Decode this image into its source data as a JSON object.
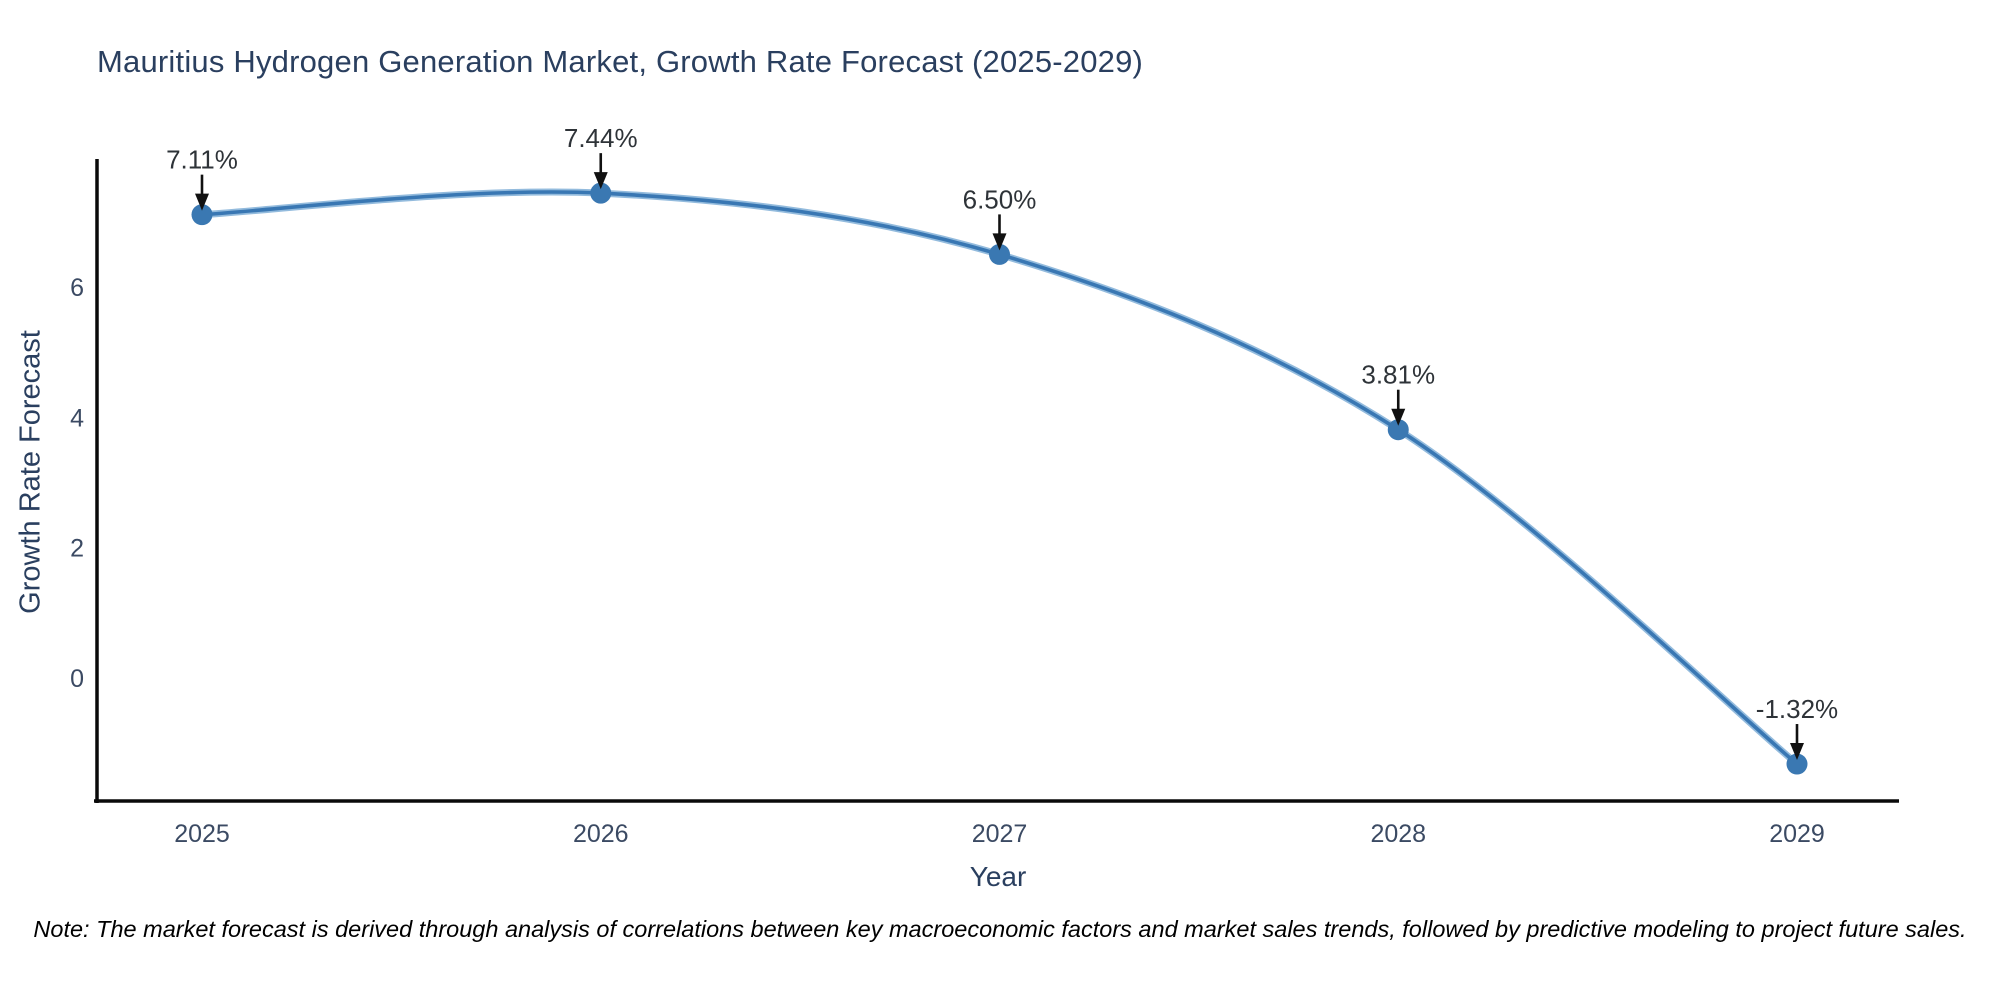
{
  "title": "Mauritius Hydrogen Generation Market, Growth Rate Forecast (2025-2029)",
  "note": "Note: The market forecast is derived through analysis of correlations between key macroeconomic factors and market sales trends, followed by predictive modeling to project future sales.",
  "chart_data": {
    "type": "line",
    "title": "Mauritius Hydrogen Generation Market, Growth Rate Forecast (2025-2029)",
    "xlabel": "Year",
    "ylabel": "Growth Rate Forecast",
    "x": [
      2025,
      2026,
      2027,
      2028,
      2029
    ],
    "values": [
      7.11,
      7.44,
      6.5,
      3.81,
      -1.32
    ],
    "point_labels": [
      "7.11%",
      "7.44%",
      "6.50%",
      "3.81%",
      "-1.32%"
    ],
    "x_ticks": [
      "2025",
      "2026",
      "2027",
      "2028",
      "2029"
    ],
    "y_ticks": [
      0,
      2,
      4,
      6
    ],
    "ylim": [
      -1.9,
      7.96
    ],
    "grid": false,
    "legend": false,
    "line_shape": "spline",
    "colors": {
      "line": "#3977b3",
      "line_halo": "#93bbdd",
      "marker": "#3a78b2",
      "axis": "#0a0a0a",
      "text": "#2a3f5f",
      "tick_text": "#3b4a63",
      "annotation_text": "#2e3338",
      "arrow": "#111111"
    }
  }
}
